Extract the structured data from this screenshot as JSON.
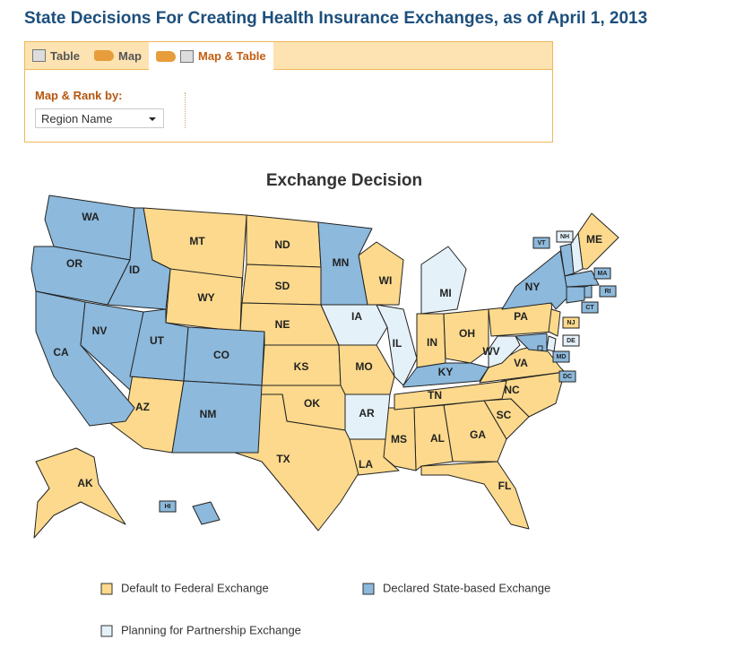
{
  "header": {
    "title": "State Decisions For Creating Health Insurance Exchanges, as of April 1, 2013"
  },
  "tabs": [
    "Table",
    "Map",
    "Map & Table"
  ],
  "controls": {
    "rank_label": "Map & Rank by:",
    "dropdown_value": "Region Name"
  },
  "map": {
    "title": "Exchange Decision",
    "legend": [
      {
        "label": "Default to Federal Exchange",
        "color": "#fcd98c",
        "states": [
          "MT",
          "WY",
          "ND",
          "SD",
          "NE",
          "KS",
          "OK",
          "TX",
          "AZ",
          "AK",
          "WI",
          "MO",
          "IN",
          "OH",
          "PA",
          "NJ",
          "VA",
          "NC",
          "SC",
          "GA",
          "FL",
          "AL",
          "MS",
          "LA",
          "TN",
          "ME"
        ]
      },
      {
        "label": "Declared State-based Exchange",
        "color": "#8cb9dc",
        "states": [
          "WA",
          "OR",
          "CA",
          "NV",
          "ID",
          "UT",
          "CO",
          "NM",
          "MN",
          "NY",
          "VT",
          "MA",
          "RI",
          "CT",
          "MD",
          "KY",
          "HI",
          "DC"
        ]
      },
      {
        "label": "Planning for Partnership Exchange",
        "color": "#e4f1f8",
        "states": [
          "IA",
          "IL",
          "MI",
          "AR",
          "WV",
          "NH",
          "DE"
        ]
      }
    ]
  }
}
